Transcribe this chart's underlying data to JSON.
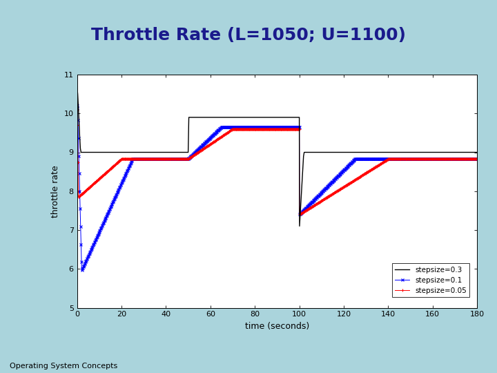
{
  "title": "Throttle Rate (L=1050; U=1100)",
  "xlabel": "time (seconds)",
  "ylabel": "throttle rate",
  "xlim": [
    0,
    180
  ],
  "ylim": [
    5,
    11
  ],
  "yticks": [
    5,
    6,
    7,
    8,
    9,
    10,
    11
  ],
  "xticks": [
    0,
    20,
    40,
    60,
    80,
    100,
    120,
    140,
    160,
    180
  ],
  "bg_color": "#aad4dc",
  "plot_bg": "#ffffff",
  "title_color": "#1a1a8c",
  "title_fontsize": 18,
  "footer_text": "Operating System Concepts",
  "footer_fontsize": 8,
  "legend_labels": [
    "stepsize=0.3",
    "stepsize=0.1",
    "stepsize=0.05"
  ],
  "legend_colors": [
    "black",
    "blue",
    "red"
  ],
  "legend_markers": [
    "None",
    "x",
    "+"
  ]
}
